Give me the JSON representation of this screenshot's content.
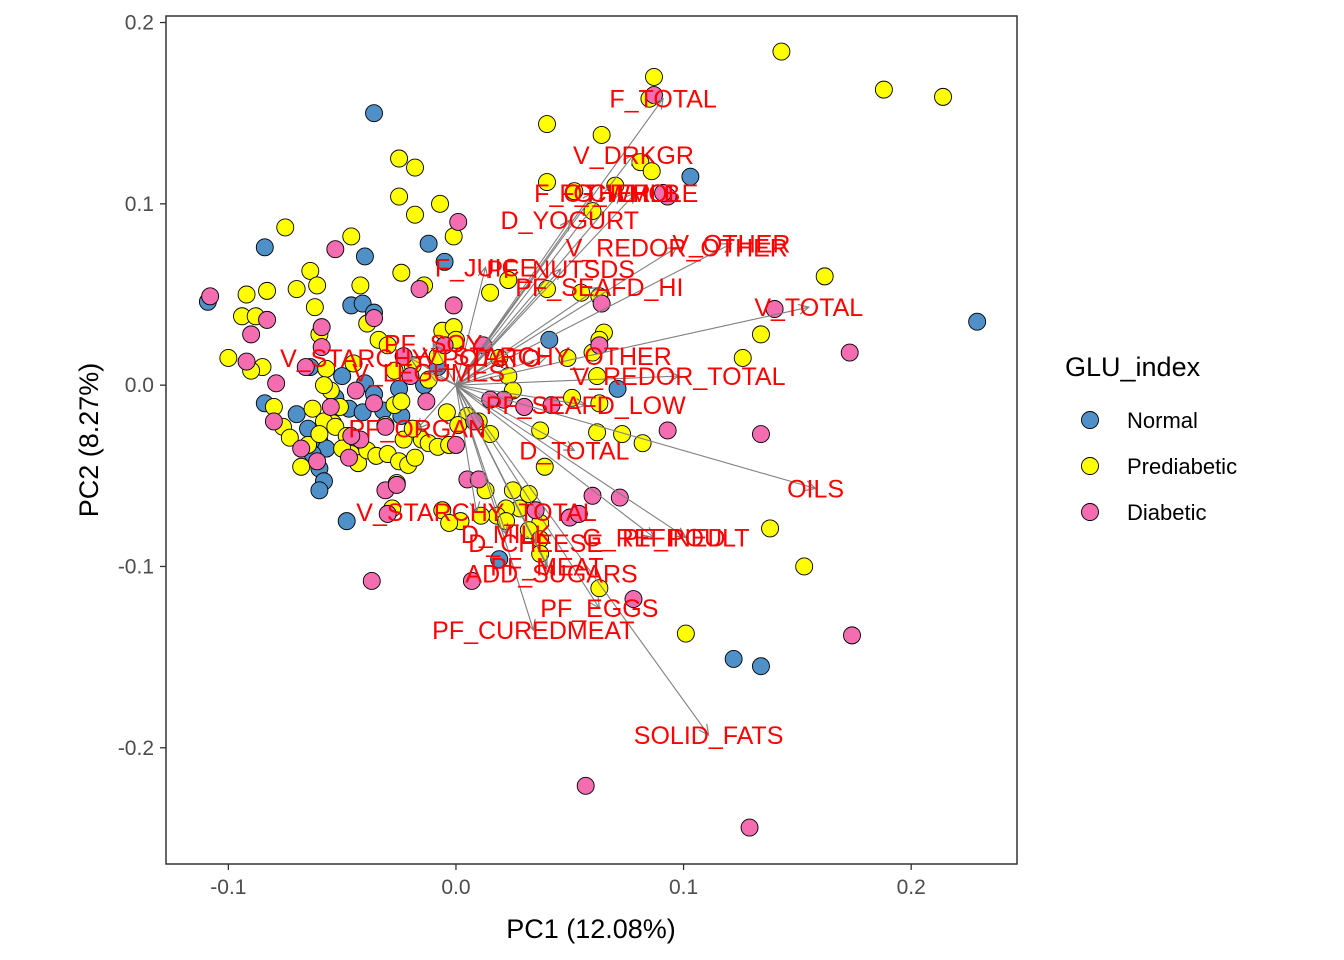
{
  "chart_data": {
    "type": "scatter",
    "subtype": "pca-biplot",
    "xlabel": "PC1 (12.08%)",
    "ylabel": "PC2 (8.27%)",
    "xlim": [
      -0.1274,
      0.2465
    ],
    "ylim": [
      -0.2641,
      0.2036
    ],
    "x_ticks": [
      {
        "value": -0.1,
        "label": "-0.1"
      },
      {
        "value": 0.0,
        "label": "0.0"
      },
      {
        "value": 0.1,
        "label": "0.1"
      },
      {
        "value": 0.2,
        "label": "0.2"
      }
    ],
    "y_ticks": [
      {
        "value": 0.2,
        "label": "0.2"
      },
      {
        "value": 0.1,
        "label": "0.1"
      },
      {
        "value": 0.0,
        "label": "0.0"
      },
      {
        "value": -0.1,
        "label": "-0.1"
      },
      {
        "value": -0.2,
        "label": "-0.2"
      }
    ],
    "grid": false,
    "legend": {
      "title": "GLU_index",
      "position": "right",
      "entries": [
        {
          "label": "Normal",
          "color": "#4f90c9"
        },
        {
          "label": "Prediabetic",
          "color": "#ffff00"
        },
        {
          "label": "Diabetic",
          "color": "#f46db0"
        }
      ]
    },
    "series": [
      {
        "name": "Normal",
        "color": "#4f90c9",
        "points": [
          [
            -0.109,
            0.046
          ],
          [
            -0.084,
            0.076
          ],
          [
            -0.036,
            0.15
          ],
          [
            -0.04,
            0.071
          ],
          [
            -0.012,
            0.078
          ],
          [
            -0.005,
            0.068
          ],
          [
            -0.046,
            0.044
          ],
          [
            -0.041,
            0.045
          ],
          [
            -0.036,
            0.04
          ],
          [
            -0.084,
            -0.01
          ],
          [
            -0.064,
            0.01
          ],
          [
            -0.05,
            0.005
          ],
          [
            -0.04,
            0.001
          ],
          [
            -0.036,
            -0.005
          ],
          [
            -0.025,
            -0.002
          ],
          [
            -0.053,
            -0.007
          ],
          [
            -0.047,
            -0.013
          ],
          [
            -0.041,
            -0.015
          ],
          [
            -0.032,
            -0.014
          ],
          [
            -0.024,
            -0.017
          ],
          [
            -0.07,
            -0.016
          ],
          [
            -0.065,
            -0.024
          ],
          [
            -0.06,
            -0.031
          ],
          [
            -0.057,
            -0.035
          ],
          [
            -0.063,
            -0.038
          ],
          [
            -0.06,
            -0.046
          ],
          [
            -0.058,
            -0.053
          ],
          [
            -0.06,
            -0.058
          ],
          [
            -0.048,
            -0.075
          ],
          [
            -0.014,
            0.0
          ],
          [
            -0.008,
            0.01
          ],
          [
            0.041,
            0.025
          ],
          [
            0.071,
            -0.002
          ],
          [
            0.103,
            0.115
          ],
          [
            0.229,
            0.035
          ],
          [
            0.122,
            -0.151
          ],
          [
            0.134,
            -0.155
          ],
          [
            0.019,
            -0.096
          ]
        ]
      },
      {
        "name": "Prediabetic",
        "color": "#ffff00",
        "points": [
          [
            -0.1,
            0.015
          ],
          [
            -0.094,
            0.038
          ],
          [
            -0.092,
            0.05
          ],
          [
            -0.083,
            0.052
          ],
          [
            -0.075,
            0.087
          ],
          [
            -0.07,
            0.053
          ],
          [
            -0.064,
            0.063
          ],
          [
            -0.062,
            0.043
          ],
          [
            -0.061,
            0.055
          ],
          [
            -0.06,
            0.028
          ],
          [
            -0.057,
            0.009
          ],
          [
            -0.054,
            -0.021
          ],
          [
            -0.051,
            -0.012
          ],
          [
            -0.046,
            0.082
          ],
          [
            -0.042,
            0.055
          ],
          [
            -0.039,
            0.034
          ],
          [
            -0.034,
            0.025
          ],
          [
            -0.03,
            0.022
          ],
          [
            -0.025,
            0.125
          ],
          [
            -0.025,
            0.104
          ],
          [
            -0.024,
            0.062
          ],
          [
            -0.018,
            0.12
          ],
          [
            -0.018,
            0.094
          ],
          [
            -0.014,
            0.055
          ],
          [
            -0.007,
            0.1
          ],
          [
            -0.001,
            0.082
          ],
          [
            -0.006,
            0.03
          ],
          [
            -0.001,
            0.032
          ],
          [
            0.019,
            0.015
          ],
          [
            0.023,
            0.005
          ],
          [
            0.04,
            0.144
          ],
          [
            0.04,
            0.112
          ],
          [
            0.052,
            0.107
          ],
          [
            0.064,
            0.138
          ],
          [
            0.06,
            0.096
          ],
          [
            0.07,
            0.11
          ],
          [
            0.081,
            0.123
          ],
          [
            0.086,
            0.118
          ],
          [
            0.085,
            0.158
          ],
          [
            0.087,
            0.17
          ],
          [
            0.143,
            0.184
          ],
          [
            0.188,
            0.163
          ],
          [
            0.214,
            0.159
          ],
          [
            0.162,
            0.06
          ],
          [
            0.134,
            0.028
          ],
          [
            0.126,
            0.015
          ],
          [
            0.023,
            0.058
          ],
          [
            0.015,
            0.051
          ],
          [
            0.04,
            0.053
          ],
          [
            0.055,
            0.051
          ],
          [
            0.063,
            0.049
          ],
          [
            0.065,
            0.029
          ],
          [
            0.063,
            0.025
          ],
          [
            0.06,
            0.018
          ],
          [
            0.062,
            0.005
          ],
          [
            0.063,
            -0.01
          ],
          [
            0.062,
            -0.026
          ],
          [
            0.03,
            -0.012
          ],
          [
            0.005,
            -0.017
          ],
          [
            0.01,
            -0.02
          ],
          [
            0.015,
            -0.027
          ],
          [
            0.082,
            -0.032
          ],
          [
            0.138,
            -0.079
          ],
          [
            0.153,
            -0.1
          ],
          [
            0.101,
            -0.137
          ],
          [
            0.063,
            -0.112
          ],
          [
            0.037,
            -0.076
          ],
          [
            0.032,
            -0.08
          ],
          [
            0.025,
            -0.058
          ],
          [
            0.013,
            -0.058
          ],
          [
            0.032,
            -0.06
          ],
          [
            0.028,
            -0.068
          ],
          [
            0.022,
            -0.068
          ],
          [
            0.018,
            -0.072
          ],
          [
            0.011,
            -0.072
          ],
          [
            0.002,
            -0.075
          ],
          [
            -0.006,
            -0.069
          ],
          [
            -0.003,
            -0.076
          ],
          [
            0.022,
            -0.075
          ],
          [
            0.037,
            -0.085
          ],
          [
            0.037,
            -0.093
          ],
          [
            0.039,
            -0.045
          ],
          [
            -0.063,
            -0.013
          ],
          [
            -0.058,
            -0.02
          ],
          [
            -0.055,
            -0.003
          ],
          [
            -0.058,
            0.0
          ],
          [
            -0.053,
            -0.023
          ],
          [
            -0.048,
            -0.028
          ],
          [
            -0.046,
            -0.038
          ],
          [
            -0.043,
            -0.043
          ],
          [
            -0.039,
            -0.036
          ],
          [
            -0.035,
            -0.039
          ],
          [
            -0.03,
            -0.038
          ],
          [
            -0.025,
            -0.042
          ],
          [
            -0.023,
            -0.03
          ],
          [
            -0.021,
            -0.044
          ],
          [
            -0.018,
            -0.04
          ],
          [
            -0.015,
            -0.03
          ],
          [
            -0.012,
            -0.032
          ],
          [
            -0.008,
            -0.034
          ],
          [
            -0.003,
            -0.033
          ],
          [
            -0.08,
            -0.012
          ],
          [
            -0.085,
            0.01
          ],
          [
            -0.09,
            0.008
          ],
          [
            -0.068,
            -0.045
          ],
          [
            -0.076,
            -0.023
          ],
          [
            -0.065,
            -0.033
          ],
          [
            -0.073,
            -0.029
          ],
          [
            -0.05,
            -0.035
          ],
          [
            -0.027,
            -0.011
          ],
          [
            -0.019,
            0.011
          ],
          [
            -0.012,
            0.003
          ],
          [
            -0.008,
            0.016
          ],
          [
            0.0,
            0.025
          ],
          [
            -0.004,
            -0.015
          ],
          [
            -0.028,
            -0.068
          ],
          [
            -0.026,
            -0.054
          ],
          [
            -0.06,
            -0.027
          ],
          [
            0.037,
            -0.025
          ],
          [
            0.051,
            -0.007
          ],
          [
            0.073,
            -0.027
          ],
          [
            0.049,
            0.015
          ],
          [
            0.025,
            -0.003
          ],
          [
            -0.088,
            0.038
          ],
          [
            -0.027,
            0.008
          ],
          [
            -0.031,
            -0.022
          ],
          [
            -0.019,
            -0.024
          ],
          [
            -0.045,
            0.012
          ],
          [
            0.001,
            -0.022
          ],
          [
            -0.024,
            -0.009
          ]
        ]
      },
      {
        "name": "Diabetic",
        "color": "#f46db0",
        "points": [
          [
            -0.108,
            0.049
          ],
          [
            -0.09,
            0.028
          ],
          [
            -0.092,
            0.013
          ],
          [
            -0.083,
            0.036
          ],
          [
            -0.059,
            0.032
          ],
          [
            -0.059,
            0.021
          ],
          [
            -0.053,
            0.075
          ],
          [
            -0.036,
            0.037
          ],
          [
            -0.023,
            0.016
          ],
          [
            -0.016,
            0.053
          ],
          [
            -0.001,
            0.044
          ],
          [
            0.001,
            0.09
          ],
          [
            0.03,
            -0.012
          ],
          [
            0.042,
            -0.011
          ],
          [
            0.021,
            -0.008
          ],
          [
            0.064,
            0.045
          ],
          [
            0.063,
            0.022
          ],
          [
            0.087,
            0.16
          ],
          [
            0.093,
            0.104
          ],
          [
            0.091,
            0.106
          ],
          [
            0.14,
            0.042
          ],
          [
            0.173,
            0.018
          ],
          [
            0.134,
            -0.027
          ],
          [
            0.093,
            -0.025
          ],
          [
            0.06,
            -0.061
          ],
          [
            0.072,
            -0.062
          ],
          [
            0.05,
            -0.073
          ],
          [
            0.054,
            -0.071
          ],
          [
            0.035,
            -0.069
          ],
          [
            0.005,
            -0.052
          ],
          [
            0.01,
            -0.052
          ],
          [
            0.078,
            -0.118
          ],
          [
            0.174,
            -0.138
          ],
          [
            0.057,
            -0.221
          ],
          [
            0.129,
            -0.244
          ],
          [
            -0.037,
            -0.108
          ],
          [
            -0.03,
            -0.071
          ],
          [
            -0.031,
            -0.058
          ],
          [
            -0.026,
            -0.055
          ],
          [
            -0.042,
            -0.03
          ],
          [
            -0.046,
            -0.028
          ],
          [
            -0.047,
            -0.04
          ],
          [
            -0.061,
            -0.042
          ],
          [
            -0.068,
            -0.035
          ],
          [
            -0.08,
            -0.02
          ],
          [
            -0.055,
            -0.012
          ],
          [
            -0.044,
            -0.003
          ],
          [
            -0.036,
            -0.01
          ],
          [
            -0.031,
            -0.023
          ],
          [
            -0.066,
            0.01
          ],
          [
            -0.079,
            0.001
          ],
          [
            0.0,
            -0.033
          ],
          [
            0.008,
            -0.02
          ],
          [
            0.015,
            -0.008
          ],
          [
            0.007,
            -0.108
          ],
          [
            -0.02,
            0.005
          ],
          [
            -0.013,
            -0.009
          ],
          [
            -0.005,
            0.022
          ],
          [
            0.012,
            0.022
          ]
        ]
      }
    ],
    "loadings": [
      {
        "label": "F_TOTAL",
        "x": 0.091,
        "y": 0.158
      },
      {
        "label": "V_DRKGR",
        "x": 0.078,
        "y": 0.127
      },
      {
        "label": "F_OTHER",
        "x": 0.06,
        "y": 0.106
      },
      {
        "label": "F_CITMLB",
        "x": 0.072,
        "y": 0.106
      },
      {
        "label": "G_WHOLE",
        "x": 0.079,
        "y": 0.106
      },
      {
        "label": "D_YOGURT",
        "x": 0.05,
        "y": 0.091
      },
      {
        "label": "V_REDOR_OTHER",
        "x": 0.097,
        "y": 0.076
      },
      {
        "label": "V_OTHER",
        "x": 0.121,
        "y": 0.078
      },
      {
        "label": "F_JUICE",
        "x": 0.013,
        "y": 0.065
      },
      {
        "label": "PF_NUTSDS",
        "x": 0.046,
        "y": 0.064
      },
      {
        "label": "PF_SEAFD_HI",
        "x": 0.063,
        "y": 0.054
      },
      {
        "label": "V_TOTAL",
        "x": 0.155,
        "y": 0.043
      },
      {
        "label": "PF_SOY",
        "x": -0.01,
        "y": 0.023
      },
      {
        "label": "V_STARCHY_POTATO",
        "x": -0.02,
        "y": 0.015
      },
      {
        "label": "V_LEGUMES",
        "x": -0.012,
        "y": 0.007
      },
      {
        "label": "V_STARCHY_OTHER",
        "x": 0.04,
        "y": 0.016
      },
      {
        "label": "V_REDOR_TOTAL",
        "x": 0.098,
        "y": 0.005
      },
      {
        "label": "PF_SEAFD_LOW",
        "x": 0.057,
        "y": -0.011
      },
      {
        "label": "PF_ORGAN",
        "x": -0.017,
        "y": -0.024
      },
      {
        "label": "D_TOTAL",
        "x": 0.052,
        "y": -0.036
      },
      {
        "label": "OILS",
        "x": 0.158,
        "y": -0.057
      },
      {
        "label": "V_STARCHY_TOTAL",
        "x": 0.009,
        "y": -0.07
      },
      {
        "label": "G_REFINED",
        "x": 0.087,
        "y": -0.084
      },
      {
        "label": "PF_POULT",
        "x": 0.101,
        "y": -0.084
      },
      {
        "label": "D_CHEESE",
        "x": 0.035,
        "y": -0.087
      },
      {
        "label": "D_MILK",
        "x": 0.022,
        "y": -0.082
      },
      {
        "label": "PF_MEAT",
        "x": 0.04,
        "y": -0.1
      },
      {
        "label": "ADD_SUGARS",
        "x": 0.042,
        "y": -0.104
      },
      {
        "label": "PF_EGGS",
        "x": 0.063,
        "y": -0.123
      },
      {
        "label": "PF_CUREDMEAT",
        "x": 0.034,
        "y": -0.135
      },
      {
        "label": "SOLID_FATS",
        "x": 0.111,
        "y": -0.193
      }
    ]
  }
}
